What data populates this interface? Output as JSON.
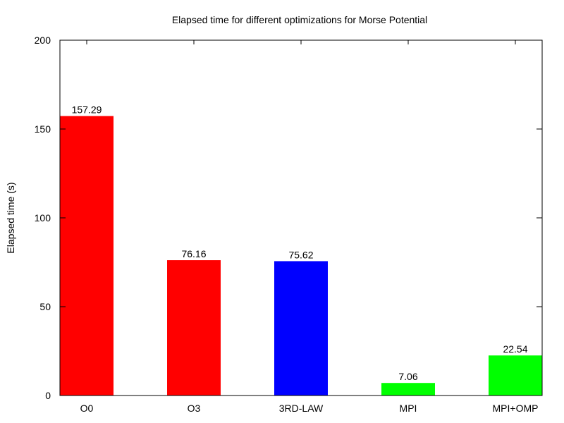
{
  "chart_data": {
    "type": "bar",
    "title": "Elapsed time for different optimizations for Morse Potential",
    "xlabel": "",
    "ylabel": "Elapsed time (s)",
    "categories": [
      "O0",
      "O3",
      "3RD-LAW",
      "MPI",
      "MPI+OMP"
    ],
    "values": [
      157.29,
      76.16,
      75.62,
      7.06,
      22.54
    ],
    "value_labels": [
      "157.29",
      "76.16",
      "75.62",
      "7.06",
      "22.54"
    ],
    "colors": [
      "#ff0000",
      "#ff0000",
      "#0000ff",
      "#00ff00",
      "#00ff00"
    ],
    "ylim": [
      0,
      200
    ],
    "yticks": [
      0,
      50,
      100,
      150,
      200
    ],
    "grid": false,
    "legend": "none"
  }
}
